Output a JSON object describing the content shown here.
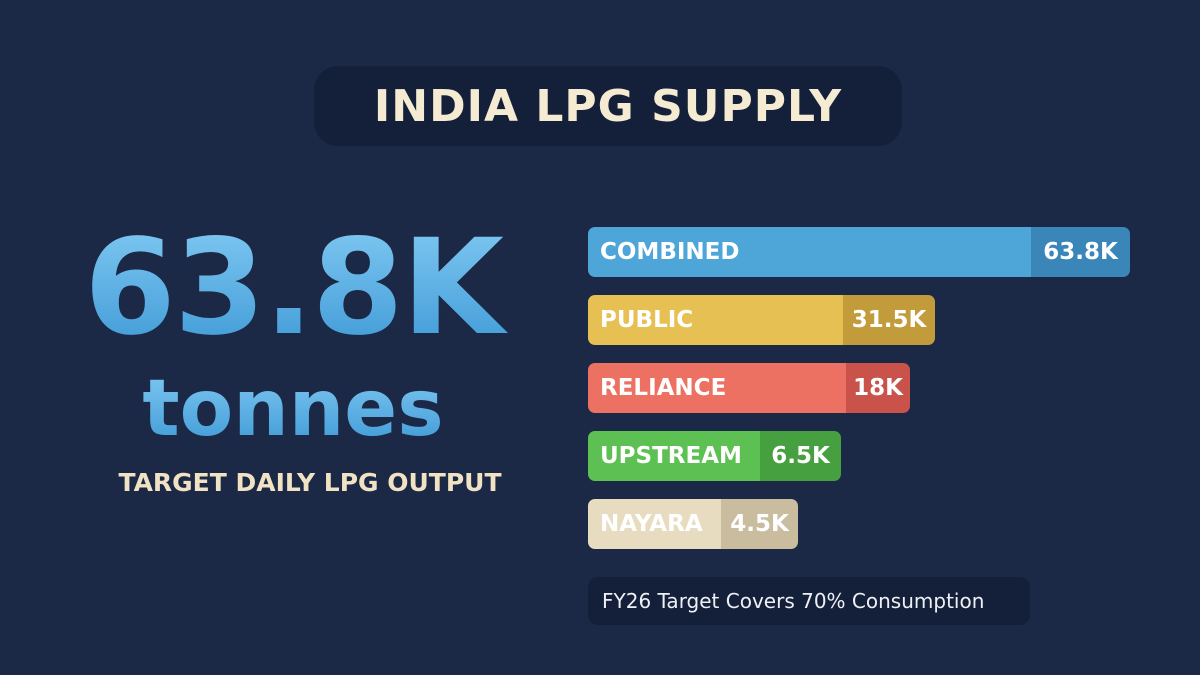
{
  "header": {
    "title": "INDIA LPG SUPPLY"
  },
  "headline": {
    "value": "63.8K",
    "unit": "tonnes",
    "caption": "TARGET DAILY LPG OUTPUT"
  },
  "breakdown": {
    "rows": [
      {
        "label": "COMBINED",
        "value": "63.8K",
        "color": "#4ea6d8",
        "value_color": "#3b86b8"
      },
      {
        "label": "PUBLIC",
        "value": "31.5K",
        "color": "#e6c052",
        "value_color": "#c29c3a"
      },
      {
        "label": "RELIANCE",
        "value": "18K",
        "color": "#ec7162",
        "value_color": "#c9524a"
      },
      {
        "label": "UPSTREAM",
        "value": "6.5K",
        "color": "#5cc052",
        "value_color": "#47a03f"
      },
      {
        "label": "NAYARA",
        "value": "4.5K",
        "color": "#e7dcc0",
        "value_color": "#cabd9f"
      }
    ]
  },
  "note": "FY26 Target Covers 70% Consumption"
}
